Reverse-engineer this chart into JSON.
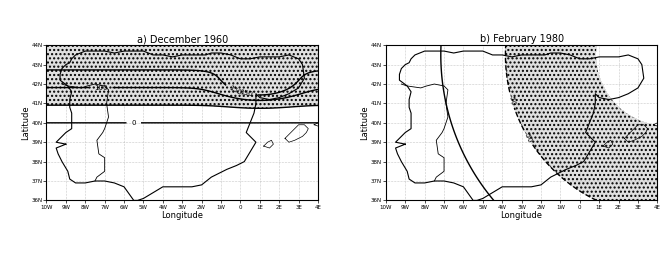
{
  "title_left": "a) December 1960",
  "title_right": "b) February 1980",
  "lon_min": -10,
  "lon_max": 4,
  "lat_min": 36,
  "lat_max": 44,
  "lon_ticks": [
    -10,
    -9,
    -8,
    -7,
    -6,
    -5,
    -4,
    -3,
    -2,
    -1,
    0,
    1,
    2,
    3,
    4
  ],
  "lon_labels": [
    "10W",
    "9W",
    "8W",
    "7W",
    "6W",
    "5W",
    "4W",
    "3W",
    "2W",
    "1W",
    "0",
    "1E",
    "2E",
    "3E",
    "4E"
  ],
  "lat_ticks": [
    36,
    37,
    38,
    39,
    40,
    41,
    42,
    43,
    44
  ],
  "lat_labels": [
    "36N",
    "37N",
    "38N",
    "39N",
    "40N",
    "41N",
    "42N",
    "43N",
    "44N"
  ],
  "xlabel": "Longitude",
  "ylabel": "Latitude",
  "background_color": "#ffffff",
  "contour_color": "#000000",
  "shading_color": "#cccccc"
}
